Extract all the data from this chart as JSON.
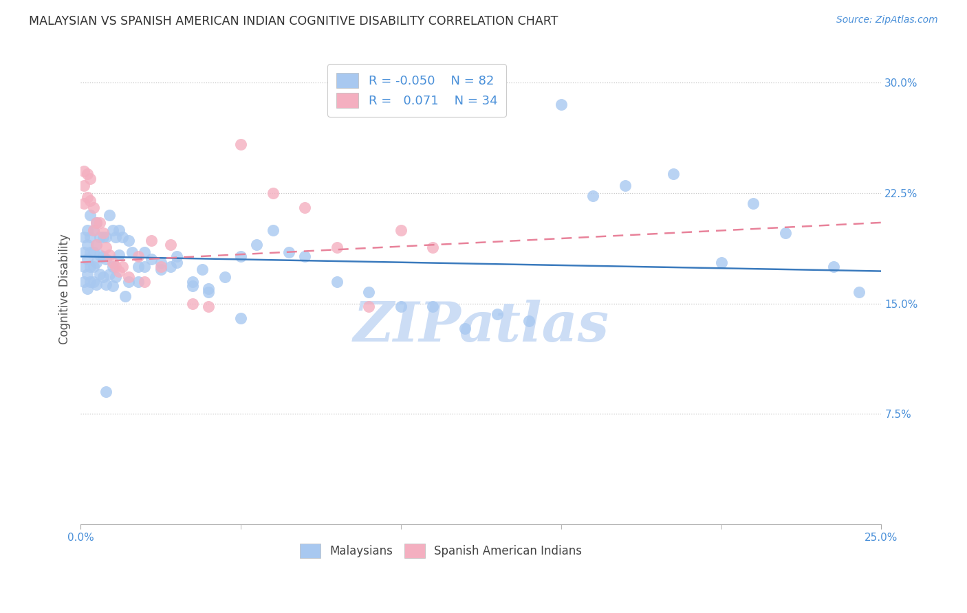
{
  "title": "MALAYSIAN VS SPANISH AMERICAN INDIAN COGNITIVE DISABILITY CORRELATION CHART",
  "source": "Source: ZipAtlas.com",
  "ylabel": "Cognitive Disability",
  "watermark": "ZIPatlas",
  "xlim": [
    0.0,
    0.25
  ],
  "ylim": [
    0.0,
    0.32
  ],
  "yticks": [
    0.075,
    0.15,
    0.225,
    0.3
  ],
  "ytick_labels": [
    "7.5%",
    "15.0%",
    "22.5%",
    "30.0%"
  ],
  "xtick_edge_labels": [
    "0.0%",
    "25.0%"
  ],
  "xtick_edge_positions": [
    0.0,
    0.25
  ],
  "xtick_minor_positions": [
    0.05,
    0.1,
    0.15,
    0.2
  ],
  "blue_color": "#a8c8f0",
  "pink_color": "#f4afc0",
  "line_blue": "#3a7abd",
  "line_pink": "#e8829a",
  "grid_color": "#c8c8c8",
  "background": "#ffffff",
  "title_color": "#333333",
  "axis_label_color": "#555555",
  "tick_color": "#4a90d9",
  "watermark_color": "#ccddf5",
  "malaysian_x": [
    0.001,
    0.001,
    0.001,
    0.001,
    0.002,
    0.002,
    0.002,
    0.002,
    0.002,
    0.003,
    0.003,
    0.003,
    0.003,
    0.003,
    0.004,
    0.004,
    0.004,
    0.004,
    0.005,
    0.005,
    0.005,
    0.005,
    0.006,
    0.006,
    0.006,
    0.007,
    0.007,
    0.007,
    0.008,
    0.008,
    0.008,
    0.009,
    0.009,
    0.01,
    0.01,
    0.011,
    0.011,
    0.012,
    0.013,
    0.014,
    0.015,
    0.016,
    0.018,
    0.02,
    0.022,
    0.025,
    0.028,
    0.03,
    0.035,
    0.038,
    0.04,
    0.045,
    0.05,
    0.055,
    0.06,
    0.065,
    0.07,
    0.08,
    0.09,
    0.1,
    0.11,
    0.12,
    0.13,
    0.14,
    0.15,
    0.16,
    0.17,
    0.185,
    0.2,
    0.21,
    0.22,
    0.235,
    0.243,
    0.008,
    0.01,
    0.012,
    0.015,
    0.018,
    0.02,
    0.025,
    0.03,
    0.035,
    0.04,
    0.05
  ],
  "malaysian_y": [
    0.195,
    0.185,
    0.175,
    0.165,
    0.2,
    0.19,
    0.18,
    0.17,
    0.16,
    0.195,
    0.185,
    0.175,
    0.165,
    0.21,
    0.2,
    0.185,
    0.175,
    0.165,
    0.205,
    0.19,
    0.178,
    0.163,
    0.195,
    0.183,
    0.17,
    0.195,
    0.182,
    0.168,
    0.195,
    0.18,
    0.163,
    0.21,
    0.17,
    0.2,
    0.175,
    0.195,
    0.168,
    0.2,
    0.195,
    0.155,
    0.193,
    0.185,
    0.175,
    0.185,
    0.18,
    0.173,
    0.175,
    0.178,
    0.162,
    0.173,
    0.16,
    0.168,
    0.182,
    0.19,
    0.2,
    0.185,
    0.182,
    0.165,
    0.158,
    0.148,
    0.148,
    0.133,
    0.143,
    0.138,
    0.285,
    0.223,
    0.23,
    0.238,
    0.178,
    0.218,
    0.198,
    0.175,
    0.158,
    0.09,
    0.162,
    0.183,
    0.165,
    0.165,
    0.175,
    0.178,
    0.182,
    0.165,
    0.158,
    0.14
  ],
  "spanish_x": [
    0.001,
    0.001,
    0.001,
    0.002,
    0.002,
    0.003,
    0.003,
    0.004,
    0.004,
    0.005,
    0.005,
    0.006,
    0.007,
    0.008,
    0.009,
    0.01,
    0.011,
    0.012,
    0.013,
    0.015,
    0.018,
    0.02,
    0.022,
    0.025,
    0.028,
    0.035,
    0.04,
    0.05,
    0.06,
    0.07,
    0.08,
    0.09,
    0.1,
    0.11
  ],
  "spanish_y": [
    0.24,
    0.23,
    0.218,
    0.238,
    0.222,
    0.235,
    0.22,
    0.215,
    0.2,
    0.205,
    0.19,
    0.205,
    0.198,
    0.188,
    0.183,
    0.178,
    0.175,
    0.172,
    0.175,
    0.168,
    0.182,
    0.165,
    0.193,
    0.175,
    0.19,
    0.15,
    0.148,
    0.258,
    0.225,
    0.215,
    0.188,
    0.148,
    0.2,
    0.188
  ],
  "blue_trend_start_y": 0.182,
  "blue_trend_end_y": 0.172,
  "pink_trend_start_y": 0.178,
  "pink_trend_end_y": 0.205
}
